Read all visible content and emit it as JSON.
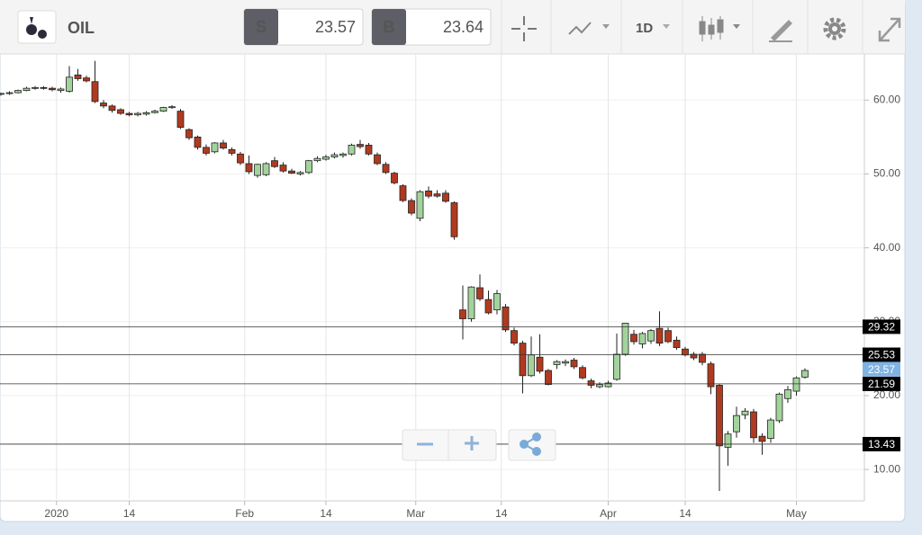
{
  "toolbar": {
    "symbol": "OIL",
    "sell": {
      "label": "S",
      "price": 23.57
    },
    "buy": {
      "label": "B",
      "price": 23.64
    },
    "timeframe": "1D"
  },
  "chart_data": {
    "type": "candlestick",
    "x": [
      "2019-12-20",
      "2019-12-23",
      "2019-12-24",
      "2019-12-26",
      "2019-12-27",
      "2019-12-30",
      "2019-12-31",
      "2020-01-02",
      "2020-01-03",
      "2020-01-06",
      "2020-01-07",
      "2020-01-08",
      "2020-01-09",
      "2020-01-10",
      "2020-01-13",
      "2020-01-14",
      "2020-01-15",
      "2020-01-16",
      "2020-01-17",
      "2020-01-20",
      "2020-01-21",
      "2020-01-22",
      "2020-01-23",
      "2020-01-24",
      "2020-01-27",
      "2020-01-28",
      "2020-01-29",
      "2020-01-30",
      "2020-01-31",
      "2020-02-03",
      "2020-02-04",
      "2020-02-05",
      "2020-02-06",
      "2020-02-07",
      "2020-02-10",
      "2020-02-11",
      "2020-02-12",
      "2020-02-13",
      "2020-02-14",
      "2020-02-17",
      "2020-02-18",
      "2020-02-19",
      "2020-02-20",
      "2020-02-21",
      "2020-02-24",
      "2020-02-25",
      "2020-02-26",
      "2020-02-27",
      "2020-02-28",
      "2020-03-02",
      "2020-03-03",
      "2020-03-04",
      "2020-03-05",
      "2020-03-06",
      "2020-03-09",
      "2020-03-10",
      "2020-03-11",
      "2020-03-12",
      "2020-03-13",
      "2020-03-16",
      "2020-03-17",
      "2020-03-18",
      "2020-03-19",
      "2020-03-20",
      "2020-03-23",
      "2020-03-24",
      "2020-03-25",
      "2020-03-26",
      "2020-03-27",
      "2020-03-30",
      "2020-03-31",
      "2020-04-01",
      "2020-04-02",
      "2020-04-03",
      "2020-04-06",
      "2020-04-07",
      "2020-04-08",
      "2020-04-09",
      "2020-04-10",
      "2020-04-13",
      "2020-04-14",
      "2020-04-15",
      "2020-04-16",
      "2020-04-17",
      "2020-04-20",
      "2020-04-21",
      "2020-04-22",
      "2020-04-23",
      "2020-04-24",
      "2020-04-27",
      "2020-04-28",
      "2020-04-29",
      "2020-04-30",
      "2020-05-01",
      "2020-05-04"
    ],
    "open": [
      60.8,
      60.9,
      61.0,
      61.3,
      61.6,
      61.7,
      61.6,
      61.3,
      61.2,
      63.4,
      63.0,
      62.5,
      59.6,
      59.2,
      58.7,
      58.2,
      58.0,
      58.1,
      58.3,
      58.5,
      59.0,
      58.5,
      56.0,
      55.0,
      53.6,
      53.0,
      54.2,
      53.3,
      52.7,
      51.4,
      49.8,
      49.9,
      51.8,
      51.2,
      50.4,
      50.0,
      50.2,
      51.8,
      52.0,
      52.3,
      52.5,
      52.7,
      54.0,
      53.9,
      52.6,
      51.3,
      50.1,
      48.4,
      46.4,
      44.0,
      47.7,
      47.3,
      47.4,
      46.1,
      31.6,
      30.4,
      34.6,
      33.0,
      31.6,
      32.0,
      28.8,
      27.1,
      22.7,
      25.2,
      23.4,
      24.2,
      24.4,
      24.8,
      23.8,
      22.0,
      21.2,
      21.2,
      22.2,
      25.6,
      28.3,
      27.0,
      27.4,
      29.1,
      28.8,
      27.5,
      26.3,
      25.6,
      25.6,
      24.3,
      21.4,
      13.0,
      15.1,
      17.4,
      17.8,
      14.5,
      14.2,
      16.6,
      19.6,
      20.6,
      22.5
    ],
    "high": [
      61.0,
      61.2,
      61.4,
      61.8,
      61.9,
      61.9,
      61.8,
      61.7,
      64.6,
      64.2,
      63.3,
      65.3,
      60.0,
      59.4,
      58.9,
      58.4,
      58.4,
      58.5,
      58.7,
      59.1,
      59.3,
      58.8,
      56.2,
      55.2,
      54.0,
      54.3,
      54.6,
      53.6,
      53.0,
      52.5,
      51.4,
      51.6,
      52.3,
      51.6,
      50.7,
      50.4,
      51.9,
      52.4,
      52.6,
      52.9,
      52.9,
      54.1,
      54.6,
      54.2,
      52.9,
      51.6,
      50.3,
      48.6,
      46.7,
      47.8,
      48.3,
      47.8,
      47.8,
      46.3,
      34.9,
      34.8,
      36.4,
      34.2,
      34.3,
      32.4,
      29.2,
      27.4,
      28.0,
      28.3,
      23.6,
      24.8,
      24.9,
      25.1,
      24.1,
      22.3,
      21.8,
      22.0,
      28.4,
      29.8,
      28.9,
      28.6,
      29.0,
      31.4,
      29.2,
      28.0,
      26.6,
      25.9,
      25.9,
      24.6,
      21.6,
      15.2,
      18.5,
      18.3,
      18.2,
      14.9,
      17.0,
      20.4,
      21.3,
      22.6,
      23.7
    ],
    "low": [
      60.6,
      60.7,
      60.9,
      61.2,
      61.4,
      61.4,
      61.2,
      61.0,
      61.0,
      62.6,
      62.4,
      59.6,
      58.9,
      58.3,
      58.0,
      57.8,
      57.8,
      57.9,
      58.2,
      58.4,
      58.8,
      56.1,
      54.6,
      53.3,
      52.5,
      52.8,
      53.3,
      52.5,
      51.2,
      50.0,
      49.5,
      49.7,
      50.8,
      50.2,
      50.0,
      49.8,
      50.0,
      51.6,
      51.8,
      52.1,
      52.2,
      52.5,
      53.4,
      52.5,
      51.2,
      50.0,
      48.6,
      46.2,
      44.4,
      43.6,
      46.7,
      46.8,
      46.1,
      41.1,
      27.6,
      30.0,
      32.8,
      31.0,
      31.0,
      28.6,
      26.8,
      20.3,
      22.5,
      23.0,
      21.4,
      23.6,
      24.0,
      23.6,
      22.2,
      21.0,
      21.0,
      21.1,
      22.0,
      25.4,
      26.9,
      26.4,
      27.0,
      26.7,
      27.1,
      26.2,
      25.3,
      24.8,
      24.1,
      20.2,
      7.1,
      10.5,
      14.3,
      16.8,
      13.6,
      12.0,
      13.6,
      16.3,
      19.0,
      20.0,
      22.3
    ],
    "close": [
      60.9,
      61.0,
      61.3,
      61.6,
      61.7,
      61.6,
      61.4,
      61.5,
      63.1,
      62.9,
      62.6,
      59.8,
      59.2,
      58.6,
      58.2,
      58.0,
      58.2,
      58.3,
      58.5,
      59.0,
      59.1,
      56.3,
      54.9,
      53.6,
      52.8,
      54.2,
      53.5,
      52.8,
      51.5,
      50.3,
      51.3,
      51.4,
      51.0,
      50.4,
      50.1,
      50.2,
      51.8,
      52.1,
      52.3,
      52.6,
      52.7,
      53.9,
      53.7,
      52.7,
      51.4,
      50.2,
      48.8,
      46.4,
      44.7,
      47.6,
      47.0,
      47.0,
      46.3,
      41.5,
      30.4,
      34.7,
      33.1,
      31.2,
      33.8,
      28.9,
      27.1,
      22.7,
      25.5,
      23.3,
      21.5,
      24.6,
      24.6,
      23.9,
      22.4,
      21.4,
      21.5,
      21.7,
      25.6,
      29.8,
      27.3,
      28.4,
      28.8,
      27.1,
      27.3,
      26.5,
      25.5,
      25.1,
      24.5,
      21.2,
      13.2,
      14.8,
      17.3,
      17.9,
      14.3,
      13.8,
      16.7,
      20.2,
      20.8,
      22.4,
      23.4
    ],
    "up_color": "#a3d39c",
    "down_color": "#b03a20",
    "edge_color": "#222222",
    "ylim": [
      6,
      66
    ],
    "yticks": [
      {
        "value": 10,
        "label": "10.00"
      },
      {
        "value": 20,
        "label": "20.00"
      },
      {
        "value": 30,
        "label": "30.00"
      },
      {
        "value": 40,
        "label": "40.00"
      },
      {
        "value": 50,
        "label": "50.00"
      },
      {
        "value": 60,
        "label": "60.00"
      }
    ],
    "xticks": [
      {
        "value": "2020-01-01",
        "label": "2020"
      },
      {
        "value": "2020-01-14",
        "label": "14"
      },
      {
        "value": "2020-02-01",
        "label": "Feb"
      },
      {
        "value": "2020-02-14",
        "label": "14"
      },
      {
        "value": "2020-03-01",
        "label": "Mar"
      },
      {
        "value": "2020-03-14",
        "label": "14"
      },
      {
        "value": "2020-04-01",
        "label": "Apr"
      },
      {
        "value": "2020-04-14",
        "label": "14"
      },
      {
        "value": "2020-05-01",
        "label": "May"
      }
    ],
    "grid": true,
    "levels": [
      29.32,
      25.53,
      21.59,
      13.43
    ],
    "last_price": 23.57,
    "last_price_color": "#7fb3e3"
  }
}
